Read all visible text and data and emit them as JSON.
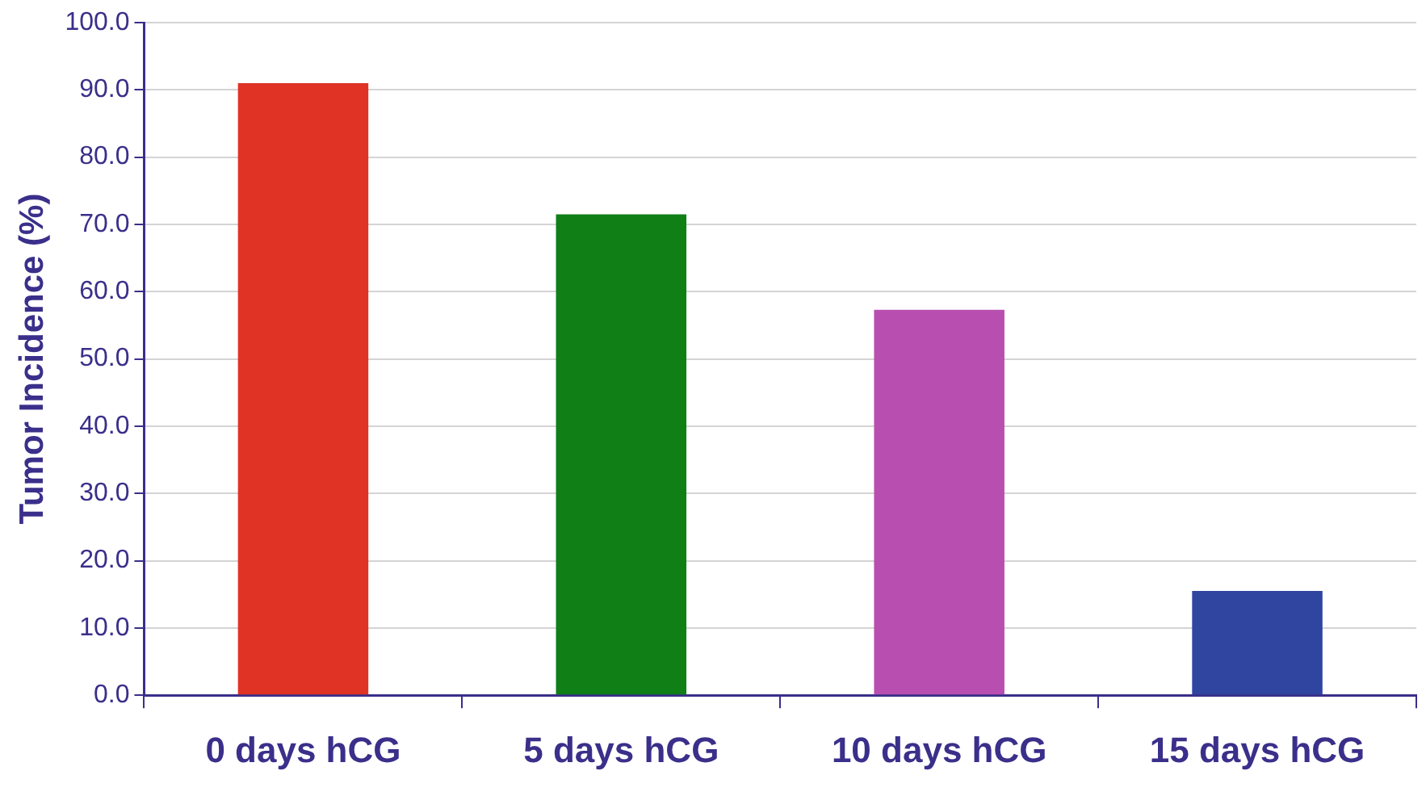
{
  "chart_data": {
    "type": "bar",
    "ylabel": "Tumor Incidence (%)",
    "categories": [
      "0 days hCG",
      "5 days hCG",
      "10 days hCG",
      "15 days hCG"
    ],
    "values": [
      91.0,
      71.5,
      57.3,
      15.5
    ],
    "colors": [
      "#e03325",
      "#0f7f16",
      "#b84fb0",
      "#2f45a0"
    ],
    "ylim": [
      0,
      100
    ],
    "yticks": [
      {
        "value": 0,
        "label": "0.0"
      },
      {
        "value": 10,
        "label": "10.0"
      },
      {
        "value": 20,
        "label": "20.0"
      },
      {
        "value": 30,
        "label": "30.0"
      },
      {
        "value": 40,
        "label": "40.0"
      },
      {
        "value": 50,
        "label": "50.0"
      },
      {
        "value": 60,
        "label": "60.0"
      },
      {
        "value": 70,
        "label": "70.0"
      },
      {
        "value": 80,
        "label": "80.0"
      },
      {
        "value": 90,
        "label": "90.0"
      },
      {
        "value": 100,
        "label": "100.0"
      }
    ],
    "grid": "y",
    "legend": false
  }
}
